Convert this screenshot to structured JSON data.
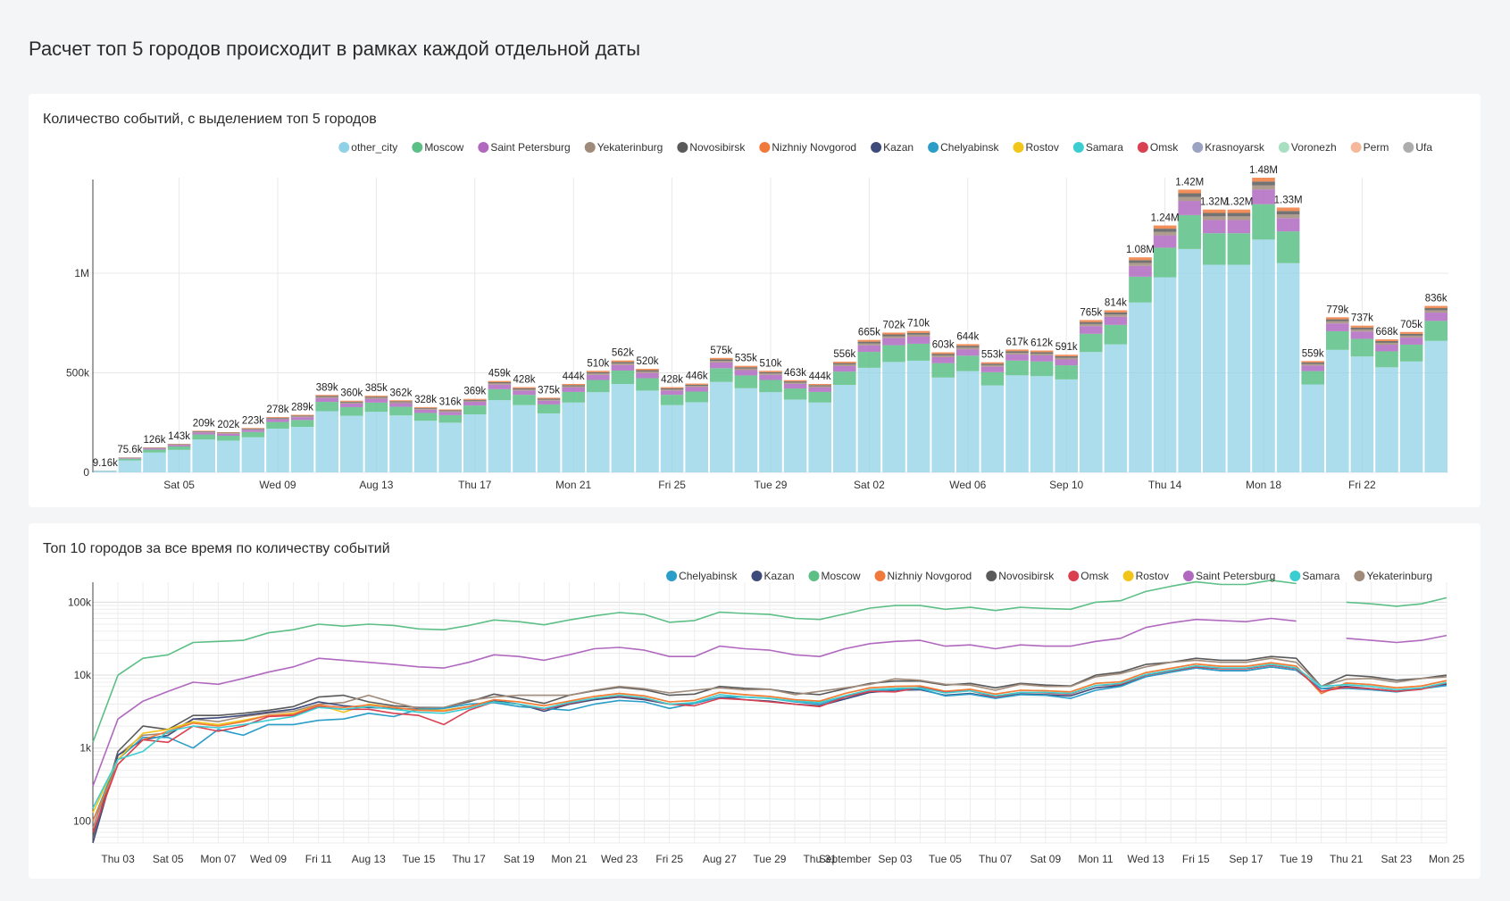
{
  "page": {
    "title": "Расчет топ 5 городов происходит в рамках каждой отдельной даты"
  },
  "panel1": {
    "title": "Количество событий, с выделением топ 5 городов"
  },
  "panel2": {
    "title": "Топ 10 городов за все время по количеству событий"
  },
  "chart_data": [
    {
      "type": "bar",
      "stacked": true,
      "title": "Количество событий, с выделением топ 5 городов",
      "legend_position": "top-right",
      "grid": true,
      "legend": [
        {
          "name": "other_city",
          "color": "#8fd1e6"
        },
        {
          "name": "Moscow",
          "color": "#5cbf86"
        },
        {
          "name": "Saint Petersburg",
          "color": "#b069bf"
        },
        {
          "name": "Yekaterinburg",
          "color": "#a08b7a"
        },
        {
          "name": "Novosibirsk",
          "color": "#5a5a5a"
        },
        {
          "name": "Nizhniy Novgorod",
          "color": "#f07a3c"
        },
        {
          "name": "Kazan",
          "color": "#3d4a7a"
        },
        {
          "name": "Chelyabinsk",
          "color": "#2a9dc9"
        },
        {
          "name": "Rostov",
          "color": "#f2c51a"
        },
        {
          "name": "Samara",
          "color": "#3ccdd1"
        },
        {
          "name": "Omsk",
          "color": "#d94050"
        },
        {
          "name": "Krasnoyarsk",
          "color": "#9aa3c2"
        },
        {
          "name": "Voronezh",
          "color": "#a8dfc0"
        },
        {
          "name": "Perm",
          "color": "#f5b89a"
        },
        {
          "name": "Ufa",
          "color": "#adadad"
        }
      ],
      "x_tick_labels": [
        "Sat 05",
        "Wed 09",
        "Aug 13",
        "Thu 17",
        "Mon 21",
        "Fri 25",
        "Tue 29",
        "Sat 02",
        "Wed 06",
        "Sep 10",
        "Thu 14",
        "Mon 18",
        "Fri 22"
      ],
      "y_tick_labels": [
        "0",
        "500k",
        "1M"
      ],
      "y_ticks": [
        0,
        500000,
        1000000
      ],
      "ylim": [
        0,
        1480000
      ],
      "totals": [
        9160,
        75600,
        126000,
        143000,
        209000,
        202000,
        223000,
        278000,
        289000,
        389000,
        360000,
        385000,
        362000,
        328000,
        316000,
        369000,
        459000,
        428000,
        375000,
        444000,
        510000,
        562000,
        520000,
        428000,
        446000,
        575000,
        535000,
        510000,
        463000,
        444000,
        556000,
        665000,
        702000,
        710000,
        603000,
        644000,
        553000,
        617000,
        612000,
        591000,
        765000,
        814000,
        1080000,
        1240000,
        1420000,
        1320000,
        1320000,
        1480000,
        1330000,
        559000,
        779000,
        737000,
        668000,
        705000,
        836000
      ],
      "labels": [
        "9.16k",
        "75.6k",
        "126k",
        "143k",
        "209k",
        "202k",
        "223k",
        "278k",
        "289k",
        "389k",
        "360k",
        "385k",
        "362k",
        "328k",
        "316k",
        "369k",
        "459k",
        "428k",
        "375k",
        "444k",
        "510k",
        "562k",
        "520k",
        "428k",
        "446k",
        "575k",
        "535k",
        "510k",
        "463k",
        "444k",
        "556k",
        "665k",
        "702k",
        "710k",
        "603k",
        "644k",
        "553k",
        "617k",
        "612k",
        "591k",
        "765k",
        "814k",
        "1.08M",
        "1.24M",
        "1.42M",
        "1.32M",
        "1.32M",
        "1.48M",
        "1.33M",
        "559k",
        "779k",
        "737k",
        "668k",
        "705k",
        "836k"
      ],
      "series_shares": [
        {
          "name": "other_city",
          "share": 0.79
        },
        {
          "name": "Moscow",
          "share": 0.12
        },
        {
          "name": "Saint Petersburg",
          "share": 0.05
        },
        {
          "name": "Yekaterinburg",
          "share": 0.014
        },
        {
          "name": "Novosibirsk",
          "share": 0.013
        },
        {
          "name": "Nizhniy Novgorod",
          "share": 0.013
        }
      ]
    },
    {
      "type": "line",
      "title": "Топ 10 городов за все время по количеству событий",
      "legend_position": "top-right",
      "y_scale": "log",
      "grid": true,
      "ylim": [
        50,
        150000
      ],
      "y_tick_labels": [
        "100",
        "1k",
        "10k",
        "100k"
      ],
      "y_ticks": [
        100,
        1000,
        10000,
        100000
      ],
      "x_tick_labels": [
        "Thu 03",
        "Sat 05",
        "Mon 07",
        "Wed 09",
        "Fri 11",
        "Aug 13",
        "Tue 15",
        "Thu 17",
        "Sat 19",
        "Mon 21",
        "Wed 23",
        "Fri 25",
        "Aug 27",
        "Tue 29",
        "Thu 31",
        "September",
        "Sep 03",
        "Tue 05",
        "Thu 07",
        "Sat 09",
        "Mon 11",
        "Wed 13",
        "Fri 15",
        "Sep 17",
        "Tue 19",
        "Thu 21",
        "Sat 23",
        "Mon 25"
      ],
      "x_tick_days": [
        3,
        5,
        7,
        9,
        11,
        13,
        15,
        17,
        19,
        21,
        23,
        25,
        27,
        29,
        31,
        32,
        34,
        36,
        38,
        40,
        42,
        44,
        46,
        48,
        50,
        52,
        54,
        56
      ],
      "x_days": [
        2,
        3,
        4,
        5,
        6,
        7,
        8,
        9,
        10,
        11,
        12,
        13,
        14,
        15,
        16,
        17,
        18,
        19,
        20,
        21,
        22,
        23,
        24,
        25,
        26,
        27,
        28,
        29,
        30,
        31,
        32,
        33,
        34,
        35,
        36,
        37,
        38,
        39,
        40,
        41,
        42,
        43,
        44,
        45,
        46,
        47,
        48,
        49,
        50,
        51,
        52,
        53,
        54,
        55,
        56
      ],
      "series": [
        {
          "name": "Moscow",
          "color": "#5cbf86",
          "values": [
            1200,
            10000,
            17000,
            19000,
            28000,
            29000,
            30000,
            38000,
            42000,
            50000,
            47000,
            50000,
            48000,
            43000,
            42000,
            48000,
            57000,
            54000,
            49000,
            57000,
            65000,
            72000,
            68000,
            53000,
            56000,
            73000,
            70000,
            68000,
            60000,
            58000,
            69000,
            83000,
            90000,
            90000,
            80000,
            85000,
            77000,
            85000,
            82000,
            80000,
            100000,
            105000,
            140000,
            165000,
            190000,
            175000,
            175000,
            200000,
            180000,
            null,
            100000,
            95000,
            88000,
            95000,
            115000
          ]
        },
        {
          "name": "Saint Petersburg",
          "color": "#b069bf",
          "values": [
            300,
            2500,
            4400,
            6000,
            8000,
            7500,
            9000,
            11000,
            13000,
            17000,
            16000,
            15000,
            14000,
            13000,
            12500,
            15000,
            19000,
            18000,
            16000,
            19000,
            23000,
            24000,
            22000,
            18000,
            18000,
            25000,
            23000,
            22000,
            19000,
            18000,
            23000,
            27000,
            29000,
            30000,
            25000,
            26000,
            23000,
            26000,
            25000,
            25000,
            29000,
            32000,
            45000,
            52000,
            58000,
            56000,
            54000,
            60000,
            55000,
            null,
            32000,
            30000,
            28000,
            30000,
            35000
          ]
        },
        {
          "name": "Novosibirsk",
          "color": "#5a5a5a",
          "values": [
            60,
            900,
            2000,
            1800,
            2800,
            2800,
            3000,
            3300,
            3700,
            5000,
            5300,
            4300,
            3800,
            3600,
            3600,
            4300,
            5500,
            4800,
            4100,
            5300,
            6100,
            6800,
            6300,
            5300,
            5500,
            7000,
            6600,
            6400,
            5700,
            5400,
            6500,
            7700,
            8300,
            8300,
            7300,
            7700,
            6700,
            7700,
            7300,
            7100,
            10000,
            11000,
            14000,
            15000,
            17000,
            16000,
            16000,
            18000,
            17000,
            7000,
            10000,
            9500,
            8500,
            9000,
            10000
          ]
        },
        {
          "name": "Yekaterinburg",
          "color": "#a08b7a",
          "values": [
            80,
            800,
            1500,
            1600,
            2500,
            2300,
            2700,
            3000,
            3200,
            4000,
            4200,
            5300,
            4200,
            3500,
            3600,
            4500,
            5000,
            5300,
            5300,
            5300,
            6200,
            7000,
            6500,
            5700,
            6200,
            6700,
            6300,
            6400,
            5400,
            6000,
            6700,
            7500,
            8900,
            8500,
            7500,
            7300,
            6200,
            7500,
            7000,
            7000,
            9500,
            10500,
            13000,
            15000,
            16000,
            15000,
            15000,
            17000,
            15000,
            7000,
            8800,
            9000,
            8000,
            9000,
            9500
          ]
        },
        {
          "name": "Kazan",
          "color": "#3d4a7a",
          "values": [
            50,
            800,
            1300,
            1500,
            2500,
            2600,
            2800,
            3100,
            3400,
            4300,
            3800,
            3600,
            3500,
            3400,
            3300,
            3700,
            4500,
            4000,
            3200,
            4000,
            4600,
            5000,
            4600,
            4000,
            4100,
            5000,
            4600,
            4400,
            4000,
            3800,
            4700,
            5800,
            6200,
            6300,
            5300,
            5600,
            4900,
            5500,
            5400,
            5200,
            6700,
            7200,
            9500,
            11000,
            12500,
            11500,
            11500,
            13000,
            11700,
            6500,
            7000,
            6500,
            6000,
            6500,
            7500
          ]
        },
        {
          "name": "Chelyabinsk",
          "color": "#2a9dc9",
          "values": [
            100,
            700,
            1400,
            1400,
            1000,
            1800,
            1500,
            2100,
            2100,
            2400,
            2500,
            3000,
            2700,
            3400,
            3500,
            4000,
            4200,
            3700,
            3500,
            3300,
            4000,
            4500,
            4300,
            3500,
            4100,
            5000,
            5000,
            4800,
            4300,
            4000,
            5000,
            6000,
            6300,
            6500,
            5200,
            5500,
            4800,
            5400,
            5300,
            4800,
            6200,
            7000,
            9500,
            11000,
            12500,
            11500,
            11500,
            13000,
            11700,
            6500,
            6600,
            6300,
            5900,
            6500,
            7200
          ]
        },
        {
          "name": "Rostov",
          "color": "#f2c51a",
          "values": [
            130,
            700,
            1600,
            1800,
            2300,
            2100,
            2400,
            2800,
            3000,
            3900,
            3100,
            4000,
            3600,
            3300,
            3300,
            3700,
            4600,
            4300,
            3800,
            4400,
            5100,
            5600,
            5200,
            4300,
            4500,
            5800,
            5400,
            5100,
            4600,
            4400,
            5600,
            6700,
            7000,
            7100,
            6000,
            6400,
            5500,
            6200,
            6100,
            5900,
            7700,
            8100,
            10800,
            12400,
            14200,
            13200,
            13200,
            14800,
            13300,
            5600,
            7800,
            7400,
            6700,
            7100,
            8400
          ]
        },
        {
          "name": "Nizhniy Novgorod",
          "color": "#f07a3c",
          "values": [
            100,
            600,
            1300,
            1700,
            2200,
            2000,
            2300,
            2800,
            2900,
            3900,
            3600,
            3900,
            3600,
            3300,
            3200,
            3700,
            4600,
            4300,
            3800,
            4400,
            5100,
            5600,
            5200,
            4300,
            4500,
            5800,
            5400,
            5100,
            4600,
            4400,
            5600,
            6700,
            7000,
            7100,
            6000,
            6400,
            5500,
            6200,
            6100,
            5900,
            7700,
            8100,
            10800,
            12400,
            14200,
            13200,
            13200,
            14800,
            13300,
            5600,
            7800,
            7400,
            6700,
            7100,
            8400
          ]
        },
        {
          "name": "Omsk",
          "color": "#d94050",
          "values": [
            70,
            600,
            1300,
            1200,
            2000,
            1700,
            2000,
            2700,
            2800,
            3700,
            3400,
            3400,
            3000,
            2800,
            2100,
            3300,
            4300,
            4000,
            3400,
            4100,
            4800,
            5200,
            4800,
            4000,
            3800,
            4800,
            4600,
            4300,
            4000,
            3700,
            5000,
            6000,
            5900,
            6800,
            5800,
            6100,
            5000,
            5800,
            5700,
            5500,
            7200,
            7500,
            10000,
            11500,
            13000,
            12200,
            12200,
            13700,
            12300,
            6000,
            6800,
            6500,
            6000,
            6400,
            7800
          ]
        },
        {
          "name": "Samara",
          "color": "#3ccdd1",
          "values": [
            150,
            700,
            900,
            1700,
            2000,
            1900,
            2100,
            2400,
            2700,
            3600,
            3400,
            3700,
            3400,
            3100,
            3000,
            3500,
            4300,
            4000,
            3500,
            4200,
            4800,
            5300,
            4900,
            4000,
            4200,
            5400,
            5000,
            4800,
            4400,
            4200,
            5200,
            6300,
            6600,
            6700,
            5700,
            6100,
            5200,
            5800,
            5800,
            5600,
            7200,
            7700,
            10200,
            11700,
            13400,
            12500,
            12500,
            14000,
            12600,
            7000,
            7400,
            7000,
            6300,
            6700,
            7900
          ]
        }
      ]
    }
  ]
}
